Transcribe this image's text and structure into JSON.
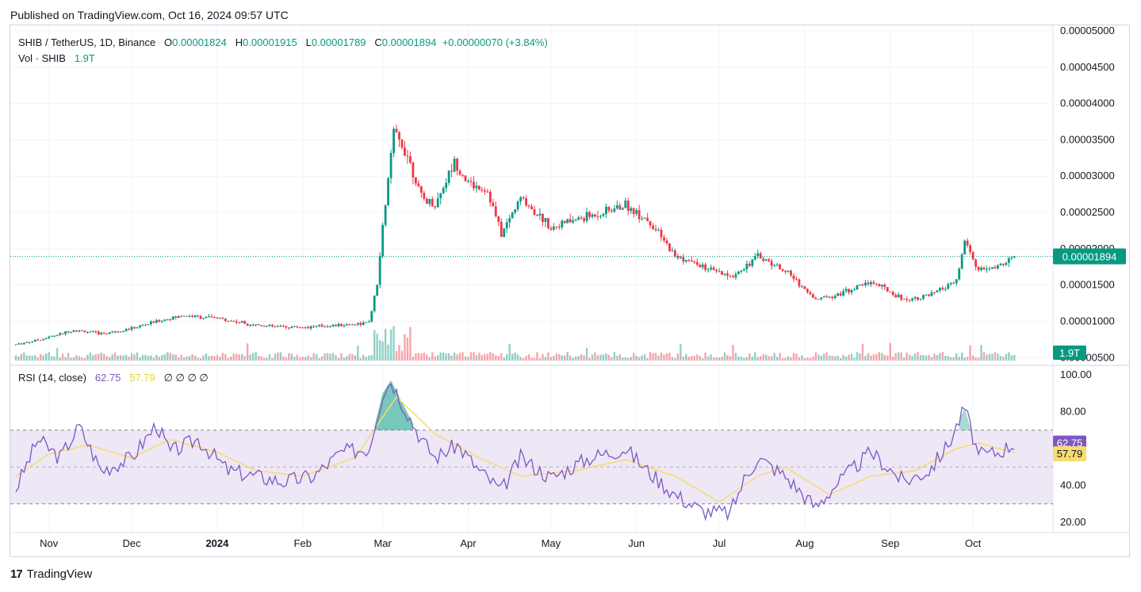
{
  "header": {
    "published": "Published on TradingView.com, Oct 16, 2024 09:57 UTC"
  },
  "legend": {
    "symbol": "SHIB / TetherUS, 1D, Binance",
    "open_label": "O",
    "open": "0.00001824",
    "high_label": "H",
    "high": "0.00001915",
    "low_label": "L",
    "low": "0.00001789",
    "close_label": "C",
    "close": "0.00001894",
    "change": "+0.00000070 (+3.84%)",
    "vol_label": "Vol · SHIB",
    "vol": "1.9T"
  },
  "rsi_legend": {
    "label": "RSI (14, close)",
    "rsi": "62.75",
    "ma": "57.79",
    "extra": "∅ ∅ ∅ ∅"
  },
  "footer": {
    "brand": "TradingView"
  },
  "colors": {
    "up": "#089981",
    "down": "#f23645",
    "rsi": "#7e57c2",
    "rsi_ma": "#f7dc6f",
    "rsi_band": "#ede7f6",
    "grid": "#f0f3fa"
  },
  "chart_data": [
    {
      "type": "candlestick",
      "title": "SHIB / TetherUS, 1D, Binance",
      "x_ticks": [
        "Nov",
        "Dec",
        "2024",
        "Feb",
        "Mar",
        "Apr",
        "May",
        "Jun",
        "Jul",
        "Aug",
        "Sep",
        "Oct"
      ],
      "y_ticks": [
        "0.00005000",
        "0.00004500",
        "0.00004000",
        "0.00003500",
        "0.00003000",
        "0.00002500",
        "0.00002000",
        "0.00001500",
        "0.00001000",
        "0.00000500"
      ],
      "ylim": [
        3.5e-06,
        5e-05
      ],
      "last_price": "0.00001894",
      "last_volume": "1.9T",
      "price_path": [
        [
          "2023-10-20",
          6.8e-06
        ],
        [
          "2023-11-01",
          7.8e-06
        ],
        [
          "2023-11-10",
          8.8e-06
        ],
        [
          "2023-11-20",
          8.3e-06
        ],
        [
          "2023-12-01",
          9e-06
        ],
        [
          "2023-12-10",
          1e-05
        ],
        [
          "2023-12-20",
          1.08e-05
        ],
        [
          "2024-01-01",
          1.04e-05
        ],
        [
          "2024-01-10",
          9.8e-06
        ],
        [
          "2024-01-20",
          9.3e-06
        ],
        [
          "2024-02-01",
          9.2e-06
        ],
        [
          "2024-02-15",
          9.5e-06
        ],
        [
          "2024-02-25",
          9.8e-06
        ],
        [
          "2024-02-28",
          1.5e-05
        ],
        [
          "2024-03-01",
          2.3e-05
        ],
        [
          "2024-03-05",
          3.6e-05
        ],
        [
          "2024-03-10",
          3.3e-05
        ],
        [
          "2024-03-15",
          2.7e-05
        ],
        [
          "2024-03-20",
          2.6e-05
        ],
        [
          "2024-03-27",
          3.2e-05
        ],
        [
          "2024-04-01",
          2.9e-05
        ],
        [
          "2024-04-08",
          2.8e-05
        ],
        [
          "2024-04-13",
          2.2e-05
        ],
        [
          "2024-04-20",
          2.7e-05
        ],
        [
          "2024-05-01",
          2.3e-05
        ],
        [
          "2024-05-10",
          2.4e-05
        ],
        [
          "2024-05-20",
          2.5e-05
        ],
        [
          "2024-05-28",
          2.6e-05
        ],
        [
          "2024-06-05",
          2.4e-05
        ],
        [
          "2024-06-15",
          1.9e-05
        ],
        [
          "2024-06-25",
          1.75e-05
        ],
        [
          "2024-07-05",
          1.6e-05
        ],
        [
          "2024-07-15",
          1.9e-05
        ],
        [
          "2024-07-25",
          1.7e-05
        ],
        [
          "2024-08-05",
          1.3e-05
        ],
        [
          "2024-08-15",
          1.4e-05
        ],
        [
          "2024-08-25",
          1.55e-05
        ],
        [
          "2024-09-06",
          1.3e-05
        ],
        [
          "2024-09-15",
          1.35e-05
        ],
        [
          "2024-09-25",
          1.55e-05
        ],
        [
          "2024-09-28",
          2.1e-05
        ],
        [
          "2024-10-03",
          1.7e-05
        ],
        [
          "2024-10-10",
          1.75e-05
        ],
        [
          "2024-10-16",
          1.89e-05
        ]
      ]
    },
    {
      "type": "line",
      "title": "RSI (14, close)",
      "y_ticks": [
        "100.00",
        "80.00",
        "40.00",
        "20.00"
      ],
      "ylim": [
        15,
        102
      ],
      "band": [
        30,
        70
      ],
      "series": [
        {
          "name": "RSI",
          "points": [
            [
              "2023-10-20",
              38
            ],
            [
              "2023-10-28",
              65
            ],
            [
              "2023-11-05",
              55
            ],
            [
              "2023-11-12",
              72
            ],
            [
              "2023-11-20",
              48
            ],
            [
              "2023-12-01",
              55
            ],
            [
              "2023-12-10",
              73
            ],
            [
              "2023-12-15",
              58
            ],
            [
              "2023-12-25",
              65
            ],
            [
              "2024-01-05",
              48
            ],
            [
              "2024-01-15",
              45
            ],
            [
              "2024-01-25",
              42
            ],
            [
              "2024-02-05",
              45
            ],
            [
              "2024-02-15",
              58
            ],
            [
              "2024-02-25",
              60
            ],
            [
              "2024-03-01",
              90
            ],
            [
              "2024-03-04",
              97
            ],
            [
              "2024-03-08",
              85
            ],
            [
              "2024-03-15",
              65
            ],
            [
              "2024-03-20",
              55
            ],
            [
              "2024-03-28",
              62
            ],
            [
              "2024-04-05",
              48
            ],
            [
              "2024-04-13",
              37
            ],
            [
              "2024-04-20",
              55
            ],
            [
              "2024-05-01",
              44
            ],
            [
              "2024-05-15",
              55
            ],
            [
              "2024-05-28",
              60
            ],
            [
              "2024-06-05",
              48
            ],
            [
              "2024-06-15",
              35
            ],
            [
              "2024-06-25",
              26
            ],
            [
              "2024-07-05",
              25
            ],
            [
              "2024-07-10",
              43
            ],
            [
              "2024-07-15",
              55
            ],
            [
              "2024-07-25",
              45
            ],
            [
              "2024-08-05",
              28
            ],
            [
              "2024-08-12",
              40
            ],
            [
              "2024-08-25",
              58
            ],
            [
              "2024-09-06",
              42
            ],
            [
              "2024-09-15",
              48
            ],
            [
              "2024-09-22",
              62
            ],
            [
              "2024-09-28",
              82
            ],
            [
              "2024-10-03",
              56
            ],
            [
              "2024-10-10",
              58
            ],
            [
              "2024-10-16",
              62.75
            ]
          ]
        },
        {
          "name": "RSI-based MA",
          "points": [
            [
              "2023-10-20",
              45
            ],
            [
              "2023-11-01",
              57
            ],
            [
              "2023-11-15",
              62
            ],
            [
              "2023-12-01",
              55
            ],
            [
              "2023-12-15",
              65
            ],
            [
              "2024-01-01",
              58
            ],
            [
              "2024-01-15",
              48
            ],
            [
              "2024-02-01",
              45
            ],
            [
              "2024-02-20",
              55
            ],
            [
              "2024-03-06",
              88
            ],
            [
              "2024-03-20",
              68
            ],
            [
              "2024-04-05",
              55
            ],
            [
              "2024-04-20",
              45
            ],
            [
              "2024-05-10",
              48
            ],
            [
              "2024-05-28",
              54
            ],
            [
              "2024-06-15",
              45
            ],
            [
              "2024-07-01",
              31
            ],
            [
              "2024-07-15",
              45
            ],
            [
              "2024-07-25",
              50
            ],
            [
              "2024-08-10",
              35
            ],
            [
              "2024-08-25",
              45
            ],
            [
              "2024-09-10",
              48
            ],
            [
              "2024-09-25",
              60
            ],
            [
              "2024-10-03",
              63
            ],
            [
              "2024-10-16",
              57.79
            ]
          ]
        }
      ]
    }
  ]
}
